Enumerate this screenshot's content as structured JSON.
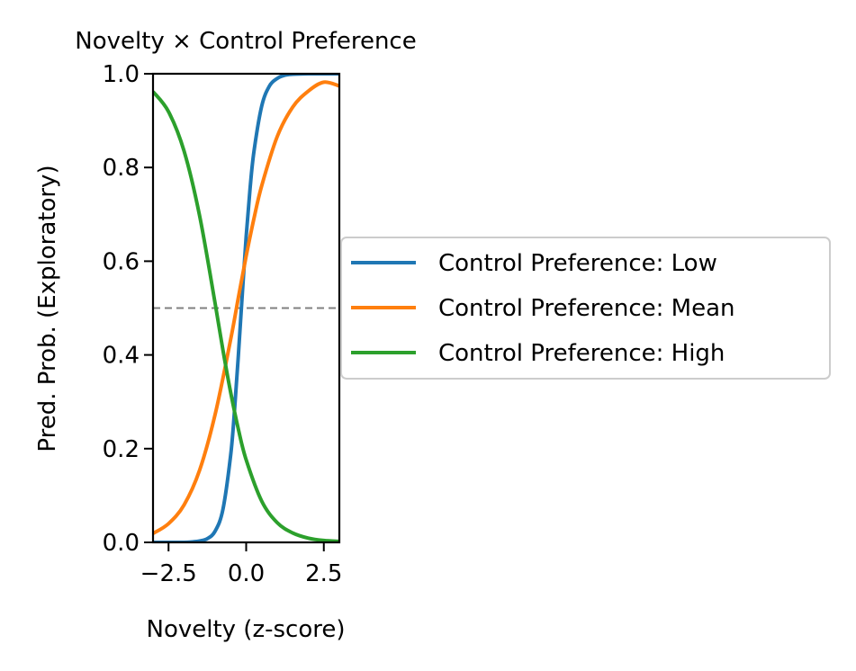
{
  "chart_data": {
    "type": "line",
    "title": "Novelty × Control Preference",
    "xlabel": "Novelty (z-score)",
    "ylabel": "Pred. Prob. (Exploratory)",
    "xlim": [
      -3,
      3
    ],
    "ylim": [
      0,
      1
    ],
    "xticks": [
      -2.5,
      0.0,
      2.5
    ],
    "xtick_labels": [
      "−2.5",
      "0.0",
      "2.5"
    ],
    "yticks": [
      0,
      0.2,
      0.4,
      0.6,
      0.8,
      1.0
    ],
    "ytick_labels": [
      "0.0",
      "0.2",
      "0.4",
      "0.6",
      "0.8",
      "1.0"
    ],
    "reference_line": {
      "y": 0.5,
      "style": "dashed",
      "color": "#808080"
    },
    "grid": false,
    "legend_position": "outside-right",
    "series": [
      {
        "name": "Control Preference: Low",
        "color": "#1f77b4",
        "x": [
          -3.0,
          -2.5,
          -2.0,
          -1.75,
          -1.5,
          -1.25,
          -1.0,
          -0.75,
          -0.5,
          -0.375,
          -0.25,
          -0.125,
          0.0,
          0.125,
          0.25,
          0.5,
          0.75,
          1.0,
          1.25,
          1.5,
          2.0,
          2.5,
          3.0
        ],
        "y": [
          0.0,
          0.0,
          0.0,
          0.001,
          0.003,
          0.008,
          0.024,
          0.07,
          0.186,
          0.282,
          0.401,
          0.53,
          0.653,
          0.755,
          0.834,
          0.931,
          0.974,
          0.99,
          0.997,
          0.999,
          1.0,
          1.0,
          1.0
        ]
      },
      {
        "name": "Control Preference: Mean",
        "color": "#ff7f0e",
        "x": [
          -3.0,
          -2.5,
          -2.0,
          -1.5,
          -1.0,
          -0.5,
          -0.25,
          0.0,
          0.25,
          0.5,
          1.0,
          1.5,
          2.0,
          2.5,
          3.0
        ],
        "y": [
          0.019,
          0.04,
          0.08,
          0.154,
          0.273,
          0.433,
          0.523,
          0.611,
          0.691,
          0.761,
          0.866,
          0.929,
          0.963,
          0.982,
          0.974
        ]
      },
      {
        "name": "Control Preference: High",
        "color": "#2ca02c",
        "x": [
          -3.0,
          -2.5,
          -2.0,
          -1.5,
          -1.0,
          -0.75,
          -0.5,
          -0.25,
          0.0,
          0.5,
          1.0,
          1.5,
          2.0,
          2.5,
          3.0
        ],
        "y": [
          0.962,
          0.919,
          0.835,
          0.697,
          0.51,
          0.411,
          0.32,
          0.241,
          0.176,
          0.088,
          0.042,
          0.02,
          0.009,
          0.004,
          0.002
        ]
      }
    ]
  }
}
